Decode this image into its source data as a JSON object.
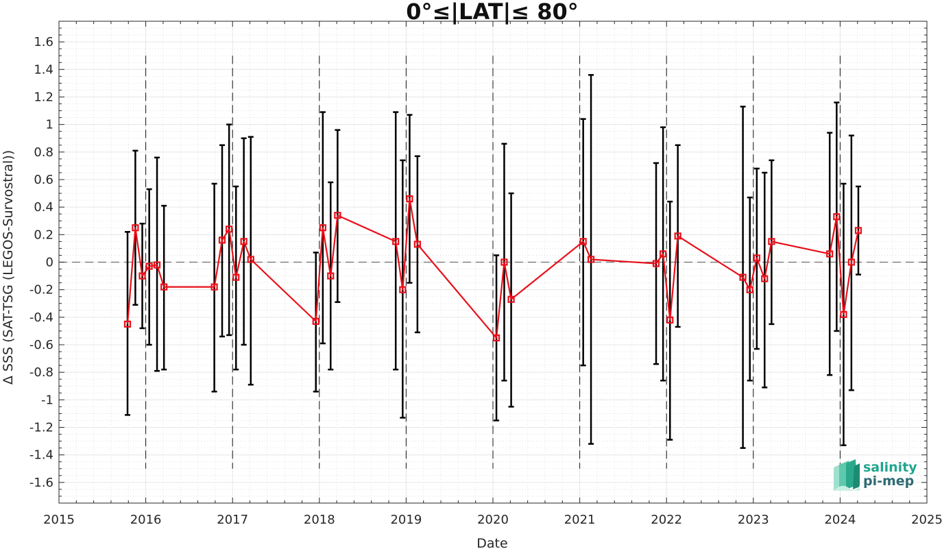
{
  "chart_data": {
    "type": "line",
    "title": "0°≤|LAT|≤ 80°",
    "xlabel": "Date",
    "ylabel": "Δ SSS (SAT-TSG (LEGOS-Survostral))",
    "xlim": [
      2015,
      2025
    ],
    "ylim": [
      -1.75,
      1.75
    ],
    "x_ticks": [
      "2015",
      "2016",
      "2017",
      "2018",
      "2019",
      "2020",
      "2021",
      "2022",
      "2023",
      "2024",
      "2025"
    ],
    "y_ticks": [
      "-1.6",
      "-1.4",
      "-1.2",
      "-1",
      "-0.8",
      "-0.6",
      "-0.4",
      "-0.2",
      "0",
      "0.2",
      "0.4",
      "0.6",
      "0.8",
      "1",
      "1.2",
      "1.4",
      "1.6"
    ],
    "grid": true,
    "zero_line": "dashed",
    "year_markers": [
      2016,
      2017,
      2018,
      2019,
      2020,
      2021,
      2022,
      2023,
      2024
    ],
    "series": [
      {
        "color": "#e8101a",
        "marker": "square",
        "points": [
          {
            "x": 2015.79,
            "y": -0.45,
            "low": -1.11,
            "high": 0.22
          },
          {
            "x": 2015.88,
            "y": 0.25,
            "low": -0.31,
            "high": 0.81
          },
          {
            "x": 2015.96,
            "y": -0.1,
            "low": -0.48,
            "high": 0.28
          },
          {
            "x": 2016.04,
            "y": -0.03,
            "low": -0.6,
            "high": 0.53
          },
          {
            "x": 2016.13,
            "y": -0.02,
            "low": -0.79,
            "high": 0.76
          },
          {
            "x": 2016.21,
            "y": -0.18,
            "low": -0.78,
            "high": 0.41
          },
          {
            "x": 2016.79,
            "y": -0.18,
            "low": -0.94,
            "high": 0.57
          },
          {
            "x": 2016.88,
            "y": 0.16,
            "low": -0.54,
            "high": 0.85
          },
          {
            "x": 2016.96,
            "y": 0.24,
            "low": -0.53,
            "high": 1.0
          },
          {
            "x": 2017.04,
            "y": -0.11,
            "low": -0.78,
            "high": 0.55
          },
          {
            "x": 2017.13,
            "y": 0.15,
            "low": -0.6,
            "high": 0.9
          },
          {
            "x": 2017.21,
            "y": 0.02,
            "low": -0.89,
            "high": 0.91
          },
          {
            "x": 2017.96,
            "y": -0.43,
            "low": -0.94,
            "high": 0.07
          },
          {
            "x": 2018.04,
            "y": 0.25,
            "low": -0.59,
            "high": 1.09
          },
          {
            "x": 2018.13,
            "y": -0.1,
            "low": -0.78,
            "high": 0.58
          },
          {
            "x": 2018.21,
            "y": 0.34,
            "low": -0.29,
            "high": 0.96
          },
          {
            "x": 2018.88,
            "y": 0.15,
            "low": -0.78,
            "high": 1.09
          },
          {
            "x": 2018.96,
            "y": -0.2,
            "low": -1.13,
            "high": 0.74
          },
          {
            "x": 2019.04,
            "y": 0.46,
            "low": -0.15,
            "high": 1.07
          },
          {
            "x": 2019.13,
            "y": 0.13,
            "low": -0.51,
            "high": 0.77
          },
          {
            "x": 2020.04,
            "y": -0.55,
            "low": -1.15,
            "high": 0.05
          },
          {
            "x": 2020.13,
            "y": 0.0,
            "low": -0.86,
            "high": 0.86
          },
          {
            "x": 2020.21,
            "y": -0.27,
            "low": -1.05,
            "high": 0.5
          },
          {
            "x": 2021.04,
            "y": 0.15,
            "low": -0.75,
            "high": 1.04
          },
          {
            "x": 2021.13,
            "y": 0.02,
            "low": -1.32,
            "high": 1.36
          },
          {
            "x": 2021.88,
            "y": -0.01,
            "low": -0.74,
            "high": 0.72
          },
          {
            "x": 2021.96,
            "y": 0.06,
            "low": -0.86,
            "high": 0.98
          },
          {
            "x": 2022.04,
            "y": -0.42,
            "low": -1.29,
            "high": 0.44
          },
          {
            "x": 2022.13,
            "y": 0.19,
            "low": -0.47,
            "high": 0.85
          },
          {
            "x": 2022.88,
            "y": -0.11,
            "low": -1.35,
            "high": 1.13
          },
          {
            "x": 2022.96,
            "y": -0.2,
            "low": -0.86,
            "high": 0.47
          },
          {
            "x": 2023.04,
            "y": 0.03,
            "low": -0.63,
            "high": 0.68
          },
          {
            "x": 2023.13,
            "y": -0.12,
            "low": -0.91,
            "high": 0.65
          },
          {
            "x": 2023.21,
            "y": 0.15,
            "low": -0.45,
            "high": 0.74
          },
          {
            "x": 2023.88,
            "y": 0.06,
            "low": -0.82,
            "high": 0.94
          },
          {
            "x": 2023.96,
            "y": 0.33,
            "low": -0.5,
            "high": 1.16
          },
          {
            "x": 2024.04,
            "y": -0.38,
            "low": -1.33,
            "high": 0.57
          },
          {
            "x": 2024.13,
            "y": 0.0,
            "low": -0.93,
            "high": 0.92
          },
          {
            "x": 2024.21,
            "y": 0.23,
            "low": -0.09,
            "high": 0.55
          }
        ]
      }
    ]
  },
  "logo": {
    "line1": "salinity",
    "line2": "pi-mep",
    "colors": [
      "#1fa58f",
      "#2d6b73"
    ]
  }
}
